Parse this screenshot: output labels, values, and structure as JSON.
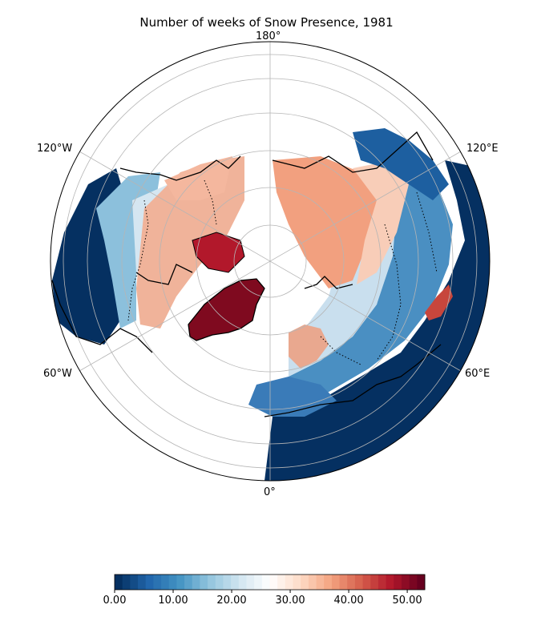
{
  "title": "Number of weeks of Snow Presence, 1981",
  "map": {
    "projection": "north-polar-stereographic",
    "longitude_labels": {
      "top": "180°",
      "upper_left": "120°W",
      "upper_right": "120°E",
      "lower_left": "60°W",
      "lower_right": "60°E",
      "bottom": "0°"
    },
    "graticule": true,
    "colormap": "RdBu_r"
  },
  "colorbar": {
    "min": 0,
    "max": 53,
    "ticks": [
      "0.00",
      "10.00",
      "20.00",
      "30.00",
      "40.00",
      "50.00"
    ],
    "colors": [
      "#053061",
      "#2166ac",
      "#4393c3",
      "#92c5de",
      "#d1e5f0",
      "#ffffff",
      "#fddbc7",
      "#f4a582",
      "#d6604d",
      "#b2182b",
      "#67001f"
    ]
  }
}
